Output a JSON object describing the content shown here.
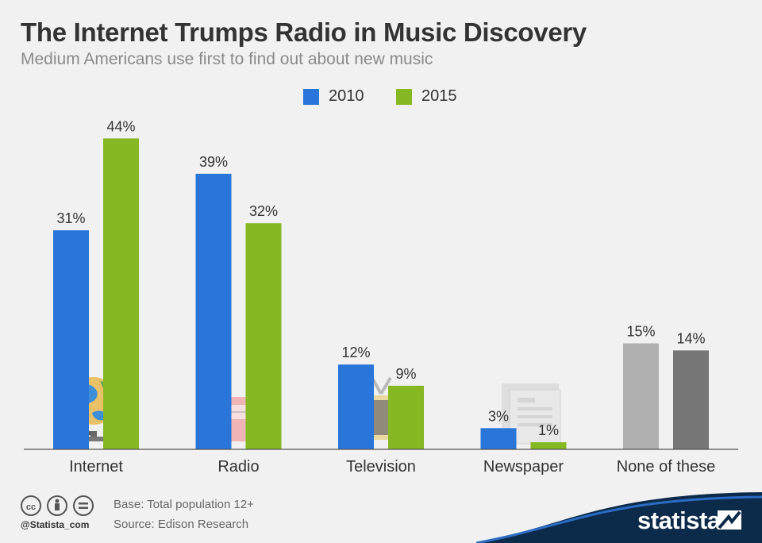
{
  "header": {
    "title": "The Internet Trumps Radio in Music Discovery",
    "subtitle": "Medium Americans use first to find out about new music"
  },
  "colors": {
    "series_2010": "#2a75d9",
    "series_2015": "#85b823",
    "none_2010": "#b0b0b0",
    "none_2015": "#777777"
  },
  "chart_data": {
    "type": "bar",
    "title": "The Internet Trumps Radio in Music Discovery",
    "subtitle": "Medium Americans use first to find out about new music",
    "xlabel": "",
    "ylabel": "",
    "ylim": [
      0,
      44
    ],
    "grid": false,
    "legend": "top-center",
    "categories": [
      "Internet",
      "Radio",
      "Television",
      "Newspaper",
      "None of these"
    ],
    "series": [
      {
        "name": "2010",
        "values": [
          31,
          39,
          12,
          3,
          15
        ],
        "labels": [
          "31%",
          "39%",
          "12%",
          "3%",
          "15%"
        ]
      },
      {
        "name": "2015",
        "values": [
          44,
          32,
          9,
          1,
          14
        ],
        "labels": [
          "44%",
          "32%",
          "9%",
          "1%",
          "14%"
        ]
      }
    ],
    "category_icons": [
      "globe-icon",
      "radio-icon",
      "television-icon",
      "newspaper-icon",
      ""
    ]
  },
  "footer": {
    "icons": [
      "creative-commons-icon",
      "attribution-icon",
      "no-derivatives-icon"
    ],
    "handle": "@Statista_com",
    "base": "Base: Total population 12+",
    "source": "Source: Edison Research",
    "logo": "statista"
  }
}
